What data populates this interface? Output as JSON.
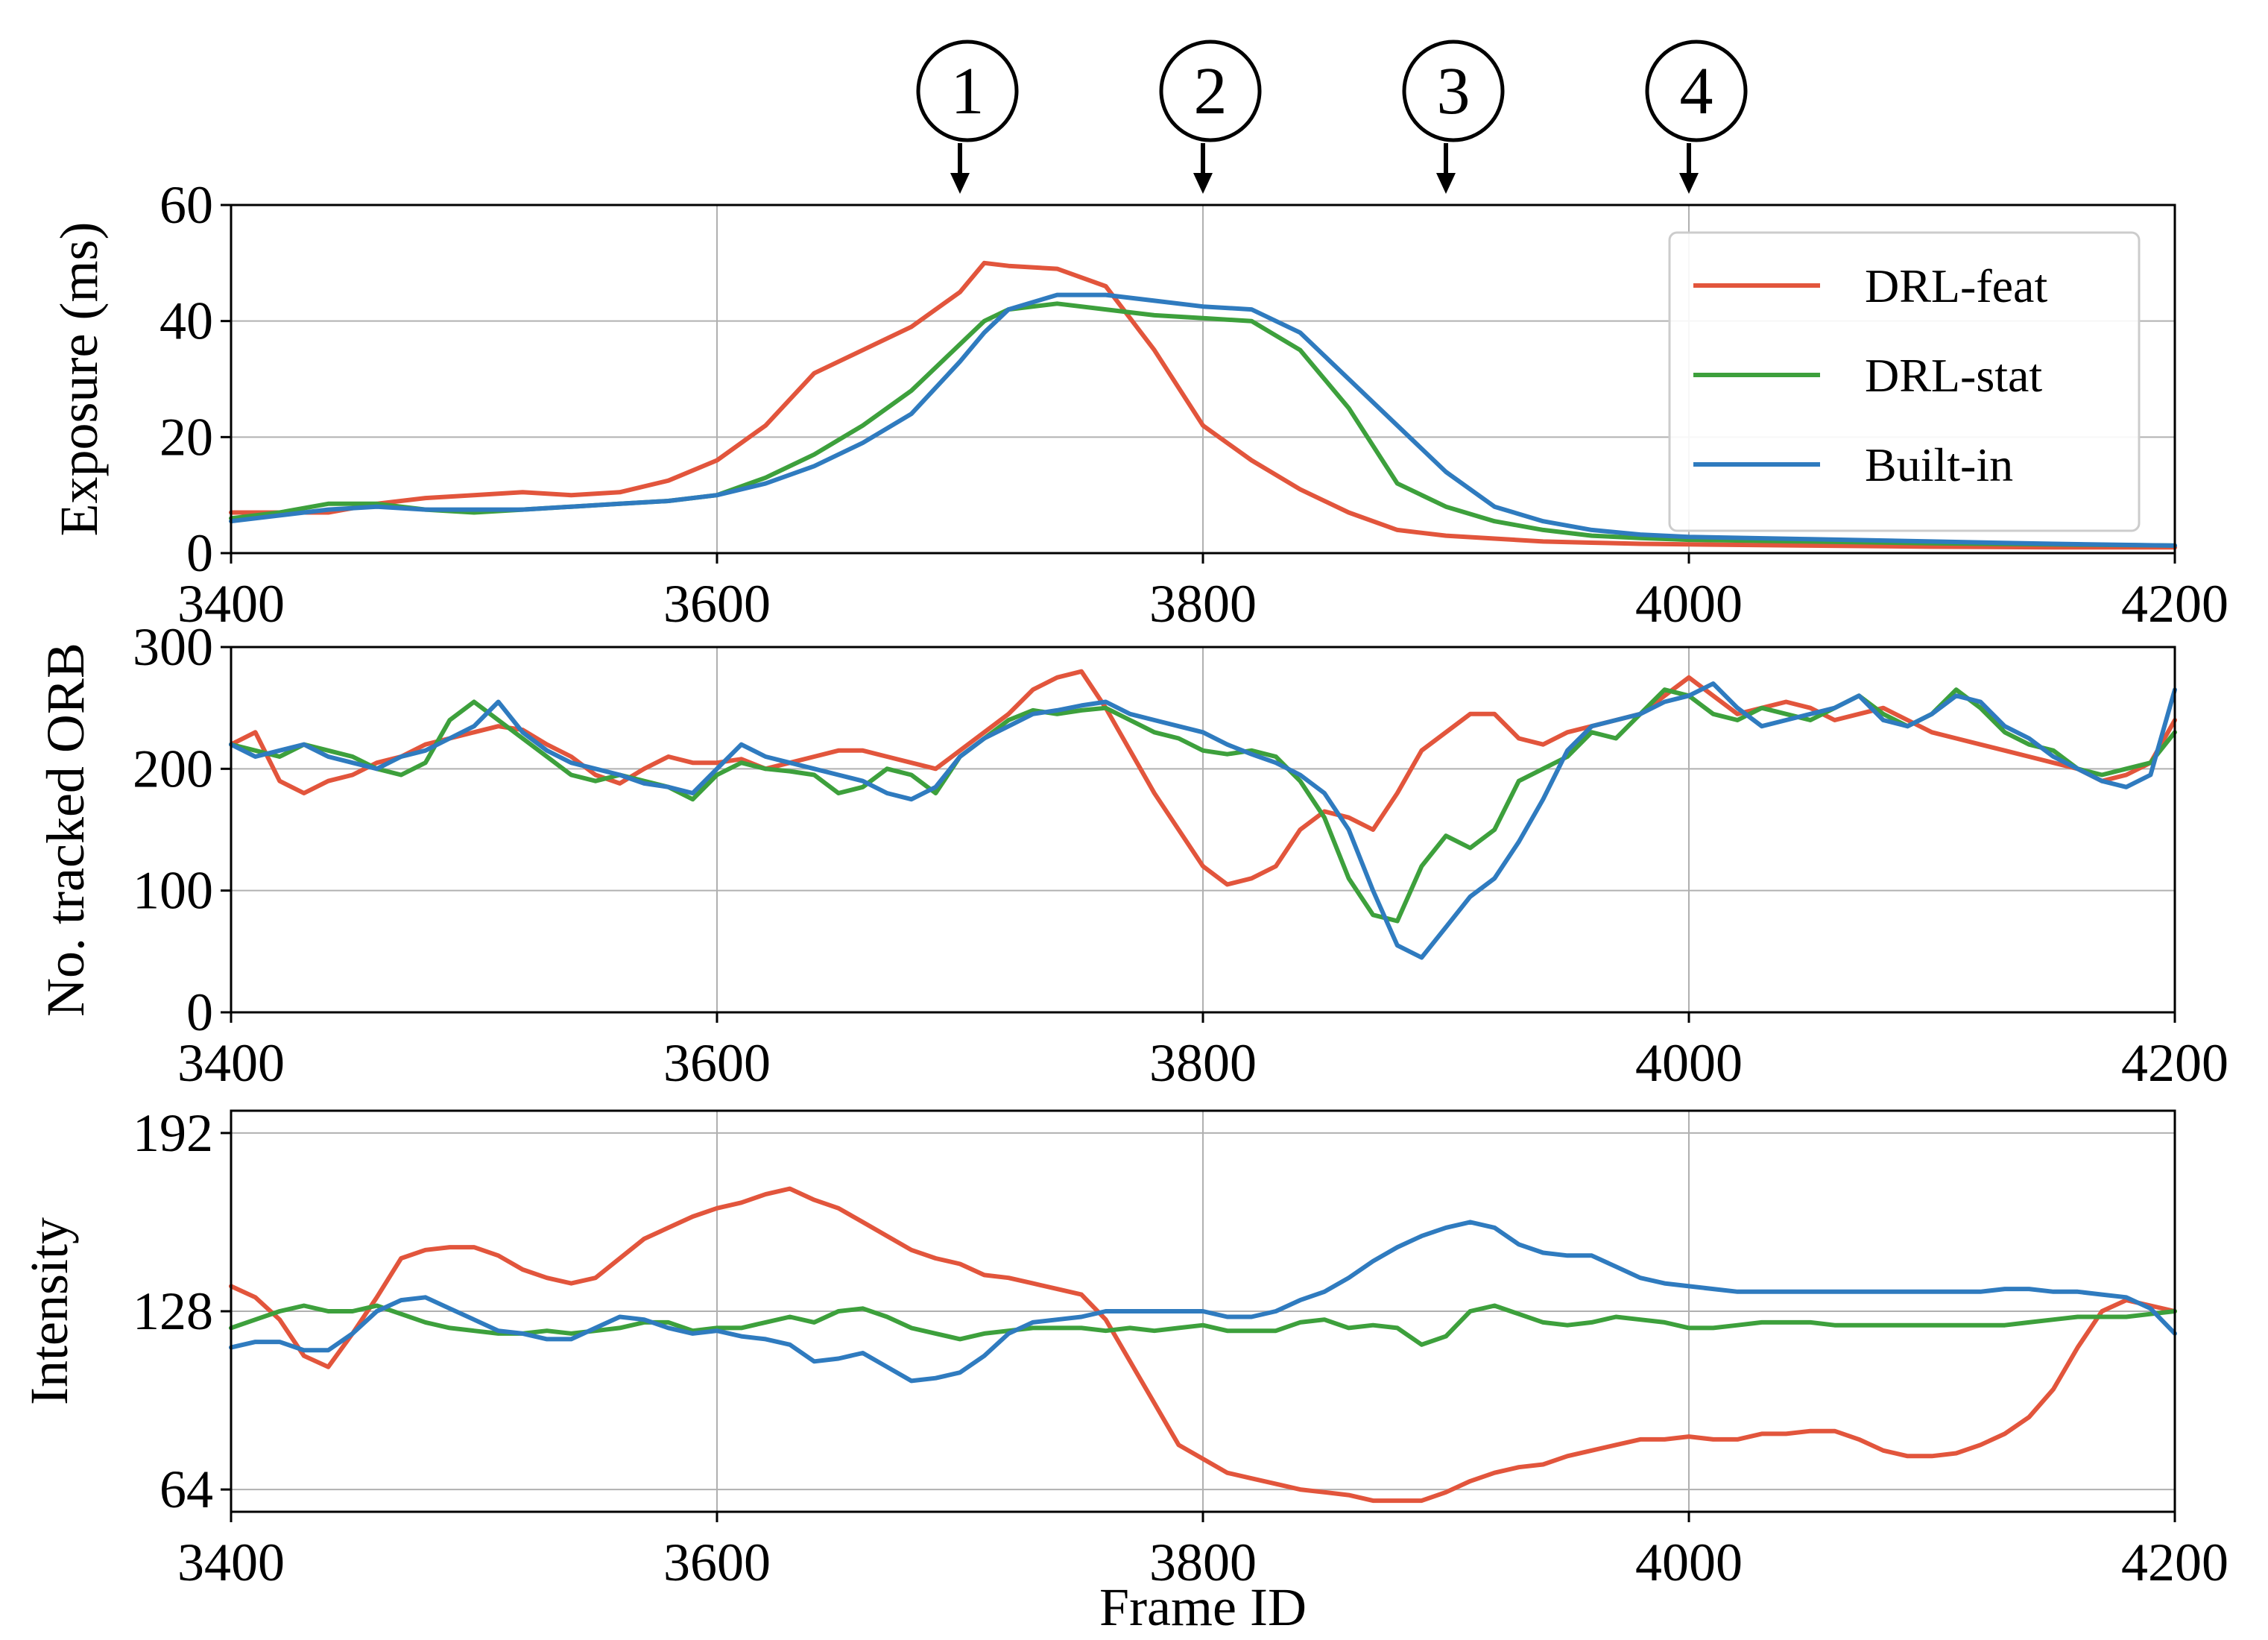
{
  "colors": {
    "drl_feat": "#e2553c",
    "drl_stat": "#3da03c",
    "built_in": "#2f7bbf",
    "grid": "#b0b0b0"
  },
  "markers": {
    "labels": [
      "1",
      "2",
      "3",
      "4"
    ],
    "frames": [
      3700,
      3800,
      3900,
      4000
    ]
  },
  "legend": {
    "position": "top-right of exposure panel",
    "entries": [
      "DRL-feat",
      "DRL-stat",
      "Built-in"
    ]
  },
  "chart_data": [
    {
      "type": "line",
      "panel": "exposure",
      "ylabel": "Exposure (ms)",
      "xlabel": "",
      "xlim": [
        3400,
        4200
      ],
      "ylim": [
        0,
        60
      ],
      "xticks": [
        "3400",
        "3600",
        "3800",
        "4000",
        "4200"
      ],
      "yticks": [
        "0",
        "20",
        "40",
        "60"
      ],
      "grid": true,
      "x": [
        3400,
        3420,
        3440,
        3460,
        3480,
        3500,
        3520,
        3540,
        3560,
        3580,
        3600,
        3620,
        3640,
        3660,
        3680,
        3700,
        3710,
        3720,
        3740,
        3760,
        3780,
        3800,
        3820,
        3840,
        3860,
        3880,
        3900,
        3920,
        3940,
        3960,
        3980,
        4000,
        4050,
        4100,
        4150,
        4200
      ],
      "series": [
        {
          "name": "DRL-feat",
          "values": [
            7,
            7,
            7,
            8.5,
            9.5,
            10,
            10.5,
            10,
            10.5,
            12.5,
            16,
            22,
            31,
            35,
            39,
            45,
            50,
            49.5,
            49,
            46,
            35,
            22,
            16,
            11,
            7,
            4,
            3,
            2.5,
            2,
            1.8,
            1.6,
            1.5,
            1.3,
            1.1,
            1,
            1
          ]
        },
        {
          "name": "DRL-stat",
          "values": [
            6,
            7,
            8.5,
            8.5,
            7.5,
            7,
            7.5,
            8,
            8.5,
            9,
            10,
            13,
            17,
            22,
            28,
            36,
            40,
            42,
            43,
            42,
            41,
            40.5,
            40,
            35,
            25,
            12,
            8,
            5.5,
            4,
            3,
            2.6,
            2.3,
            2,
            1.7,
            1.5,
            1.3
          ]
        },
        {
          "name": "Built-in",
          "values": [
            5.5,
            6.5,
            7.5,
            8,
            7.5,
            7.5,
            7.5,
            8,
            8.5,
            9,
            10,
            12,
            15,
            19,
            24,
            33,
            38,
            42,
            44.5,
            44.5,
            43.5,
            42.5,
            42,
            38,
            30,
            22,
            14,
            8,
            5.5,
            4,
            3.2,
            2.8,
            2.4,
            2,
            1.6,
            1.3
          ]
        }
      ]
    },
    {
      "type": "line",
      "panel": "tracked",
      "ylabel": "No. tracked ORB",
      "xlabel": "",
      "xlim": [
        3400,
        4200
      ],
      "ylim": [
        0,
        300
      ],
      "xticks": [
        "3400",
        "3600",
        "3800",
        "4000",
        "4200"
      ],
      "yticks": [
        "0",
        "100",
        "200",
        "300"
      ],
      "grid": true,
      "x": [
        3400,
        3410,
        3420,
        3430,
        3440,
        3450,
        3460,
        3470,
        3480,
        3490,
        3500,
        3510,
        3520,
        3530,
        3540,
        3550,
        3560,
        3570,
        3580,
        3590,
        3600,
        3610,
        3620,
        3630,
        3640,
        3650,
        3660,
        3670,
        3680,
        3690,
        3700,
        3710,
        3720,
        3730,
        3740,
        3750,
        3760,
        3770,
        3780,
        3790,
        3800,
        3810,
        3820,
        3830,
        3840,
        3850,
        3860,
        3870,
        3880,
        3890,
        3900,
        3910,
        3920,
        3930,
        3940,
        3950,
        3960,
        3970,
        3980,
        3990,
        4000,
        4010,
        4020,
        4030,
        4040,
        4050,
        4060,
        4070,
        4080,
        4090,
        4100,
        4110,
        4120,
        4130,
        4140,
        4150,
        4160,
        4170,
        4180,
        4190,
        4200
      ],
      "series": [
        {
          "name": "DRL-feat",
          "values": [
            220,
            230,
            190,
            180,
            190,
            195,
            205,
            210,
            220,
            225,
            230,
            235,
            232,
            220,
            210,
            195,
            188,
            200,
            210,
            205,
            205,
            208,
            200,
            205,
            210,
            215,
            215,
            210,
            205,
            200,
            215,
            230,
            245,
            265,
            275,
            280,
            250,
            215,
            180,
            150,
            120,
            105,
            110,
            120,
            150,
            165,
            160,
            150,
            180,
            215,
            230,
            245,
            245,
            225,
            220,
            230,
            235,
            240,
            245,
            260,
            275,
            260,
            245,
            250,
            255,
            250,
            240,
            245,
            250,
            240,
            230,
            225,
            220,
            215,
            210,
            205,
            200,
            190,
            195,
            205,
            240
          ]
        },
        {
          "name": "DRL-stat",
          "values": [
            220,
            215,
            210,
            220,
            215,
            210,
            200,
            195,
            205,
            240,
            255,
            240,
            225,
            210,
            195,
            190,
            195,
            190,
            185,
            175,
            195,
            205,
            200,
            198,
            195,
            180,
            185,
            200,
            195,
            180,
            210,
            225,
            240,
            248,
            245,
            248,
            250,
            240,
            230,
            225,
            215,
            212,
            215,
            210,
            190,
            160,
            110,
            80,
            75,
            120,
            145,
            135,
            150,
            190,
            200,
            210,
            230,
            225,
            245,
            265,
            260,
            245,
            240,
            250,
            245,
            240,
            250,
            260,
            245,
            235,
            245,
            265,
            250,
            230,
            220,
            215,
            200,
            195,
            200,
            205,
            230
          ]
        },
        {
          "name": "Built-in",
          "values": [
            220,
            210,
            215,
            220,
            210,
            205,
            200,
            210,
            215,
            225,
            235,
            255,
            230,
            215,
            205,
            200,
            195,
            188,
            185,
            180,
            200,
            220,
            210,
            205,
            200,
            195,
            190,
            180,
            175,
            185,
            210,
            225,
            235,
            245,
            248,
            252,
            255,
            245,
            240,
            235,
            230,
            220,
            212,
            205,
            195,
            180,
            150,
            100,
            55,
            45,
            70,
            95,
            110,
            140,
            175,
            215,
            235,
            240,
            245,
            255,
            260,
            270,
            250,
            235,
            240,
            245,
            250,
            260,
            240,
            235,
            245,
            260,
            255,
            235,
            225,
            210,
            200,
            190,
            185,
            195,
            265
          ]
        }
      ]
    },
    {
      "type": "line",
      "panel": "intensity",
      "ylabel": "Intensity",
      "xlabel": "Frame ID",
      "xlim": [
        3400,
        4200
      ],
      "ylim": [
        56,
        200
      ],
      "xticks": [
        "3400",
        "3600",
        "3800",
        "4000",
        "4200"
      ],
      "yticks": [
        "64",
        "128",
        "192"
      ],
      "grid": true,
      "x": [
        3400,
        3410,
        3420,
        3430,
        3440,
        3450,
        3460,
        3470,
        3480,
        3490,
        3500,
        3510,
        3520,
        3530,
        3540,
        3550,
        3560,
        3570,
        3580,
        3590,
        3600,
        3610,
        3620,
        3630,
        3640,
        3650,
        3660,
        3670,
        3680,
        3690,
        3700,
        3710,
        3720,
        3730,
        3740,
        3750,
        3760,
        3770,
        3780,
        3790,
        3800,
        3810,
        3820,
        3830,
        3840,
        3850,
        3860,
        3870,
        3880,
        3890,
        3900,
        3910,
        3920,
        3930,
        3940,
        3950,
        3960,
        3970,
        3980,
        3990,
        4000,
        4010,
        4020,
        4030,
        4040,
        4050,
        4060,
        4070,
        4080,
        4090,
        4100,
        4110,
        4120,
        4130,
        4140,
        4150,
        4160,
        4170,
        4180,
        4190,
        4200
      ],
      "series": [
        {
          "name": "DRL-feat",
          "values": [
            137,
            133,
            125,
            112,
            108,
            120,
            133,
            147,
            150,
            151,
            151,
            148,
            143,
            140,
            138,
            140,
            147,
            154,
            158,
            162,
            165,
            167,
            170,
            172,
            168,
            165,
            160,
            155,
            150,
            147,
            145,
            141,
            140,
            138,
            136,
            134,
            125,
            110,
            95,
            80,
            75,
            70,
            68,
            66,
            64,
            63,
            62,
            60,
            60,
            60,
            63,
            67,
            70,
            72,
            73,
            76,
            78,
            80,
            82,
            82,
            83,
            82,
            82,
            84,
            84,
            85,
            85,
            82,
            78,
            76,
            76,
            77,
            80,
            84,
            90,
            100,
            115,
            128,
            132,
            130,
            128
          ]
        },
        {
          "name": "DRL-stat",
          "values": [
            122,
            125,
            128,
            130,
            128,
            128,
            130,
            127,
            124,
            122,
            121,
            120,
            120,
            121,
            120,
            121,
            122,
            124,
            124,
            121,
            122,
            122,
            124,
            126,
            124,
            128,
            129,
            126,
            122,
            120,
            118,
            120,
            121,
            122,
            122,
            122,
            121,
            122,
            121,
            122,
            123,
            121,
            121,
            121,
            124,
            125,
            122,
            123,
            122,
            116,
            119,
            128,
            130,
            127,
            124,
            123,
            124,
            126,
            125,
            124,
            122,
            122,
            123,
            124,
            124,
            124,
            123,
            123,
            123,
            123,
            123,
            123,
            123,
            123,
            124,
            125,
            126,
            126,
            126,
            127,
            128
          ]
        },
        {
          "name": "Built-in",
          "values": [
            115,
            117,
            117,
            114,
            114,
            120,
            128,
            132,
            133,
            129,
            125,
            121,
            120,
            118,
            118,
            122,
            126,
            125,
            122,
            120,
            121,
            119,
            118,
            116,
            110,
            111,
            113,
            108,
            103,
            104,
            106,
            112,
            120,
            124,
            125,
            126,
            128,
            128,
            128,
            128,
            128,
            126,
            126,
            128,
            132,
            135,
            140,
            146,
            151,
            155,
            158,
            160,
            158,
            152,
            149,
            148,
            148,
            144,
            140,
            138,
            137,
            136,
            135,
            135,
            135,
            135,
            135,
            135,
            135,
            135,
            135,
            135,
            135,
            136,
            136,
            135,
            135,
            134,
            133,
            129,
            120
          ]
        }
      ]
    }
  ]
}
